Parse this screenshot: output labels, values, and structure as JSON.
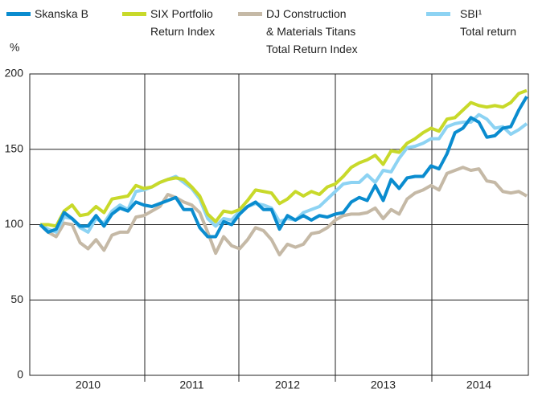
{
  "chart_data": {
    "type": "line",
    "y_label": "%",
    "categories": [
      null,
      null,
      null,
      null,
      null,
      null,
      "2010",
      null,
      null,
      null,
      null,
      null,
      null,
      null,
      null,
      null,
      null,
      null,
      null,
      "2011",
      null,
      null,
      null,
      null,
      null,
      null,
      null,
      null,
      null,
      null,
      null,
      "2012",
      null,
      null,
      null,
      null,
      null,
      null,
      null,
      null,
      null,
      null,
      null,
      "2013",
      null,
      null,
      null,
      null,
      null,
      null,
      null,
      null,
      null,
      null,
      null,
      "2014",
      null,
      null,
      null,
      null,
      null,
      null
    ],
    "ylim": [
      0,
      200
    ],
    "yticks": [
      0,
      50,
      100,
      150,
      200
    ],
    "grid": true,
    "series": [
      {
        "name": "Skanska B",
        "color": "#0a8ccf",
        "values": [
          100,
          95,
          97,
          108,
          104,
          99,
          99,
          106,
          99,
          107,
          111,
          109,
          115,
          113,
          112,
          114,
          116,
          118,
          110,
          110,
          98,
          92,
          92,
          102,
          100,
          107,
          112,
          115,
          110,
          110,
          97,
          106,
          103,
          106,
          103,
          106,
          105,
          107,
          108,
          115,
          118,
          116,
          126,
          116,
          130,
          124,
          131,
          132,
          132,
          139,
          137,
          147,
          161,
          164,
          171,
          168,
          158,
          159,
          164,
          165,
          176,
          185
        ]
      },
      {
        "name": "SIX Portfolio\nReturn Index",
        "color": "#c8d92a",
        "values": [
          100,
          100,
          99,
          109,
          113,
          106,
          107,
          112,
          108,
          117,
          118,
          119,
          126,
          124,
          125,
          128,
          130,
          131,
          130,
          125,
          119,
          107,
          102,
          109,
          108,
          110,
          116,
          123,
          122,
          121,
          114,
          117,
          122,
          119,
          122,
          120,
          125,
          127,
          132,
          138,
          141,
          143,
          146,
          140,
          149,
          148,
          154,
          157,
          161,
          164,
          162,
          170,
          171,
          176,
          181,
          179,
          178,
          179,
          178,
          181,
          187,
          189
        ]
      },
      {
        "name": "DJ Construction\n& Materials Titans\nTotal Return Index",
        "color": "#c5b9a6",
        "values": [
          100,
          95,
          92,
          101,
          100,
          88,
          84,
          90,
          83,
          93,
          95,
          95,
          105,
          106,
          109,
          112,
          120,
          118,
          115,
          113,
          108,
          95,
          81,
          92,
          86,
          84,
          90,
          98,
          96,
          90,
          80,
          87,
          85,
          87,
          94,
          95,
          98,
          103,
          106,
          107,
          107,
          108,
          111,
          104,
          110,
          107,
          117,
          121,
          123,
          126,
          123,
          134,
          136,
          138,
          136,
          137,
          129,
          128,
          122,
          121,
          122,
          119
        ]
      },
      {
        "name": "SBI¹\nTotal return",
        "color": "#8dd3f3",
        "values": [
          100,
          97,
          95,
          105,
          104,
          98,
          95,
          104,
          101,
          109,
          113,
          110,
          122,
          123,
          125,
          128,
          130,
          132,
          128,
          124,
          117,
          104,
          99,
          104,
          103,
          109,
          112,
          114,
          113,
          111,
          102,
          104,
          103,
          108,
          110,
          112,
          117,
          122,
          127,
          128,
          128,
          133,
          128,
          136,
          135,
          144,
          151,
          152,
          154,
          157,
          157,
          165,
          167,
          168,
          168,
          173,
          170,
          164,
          165,
          160,
          163,
          167
        ]
      }
    ]
  }
}
